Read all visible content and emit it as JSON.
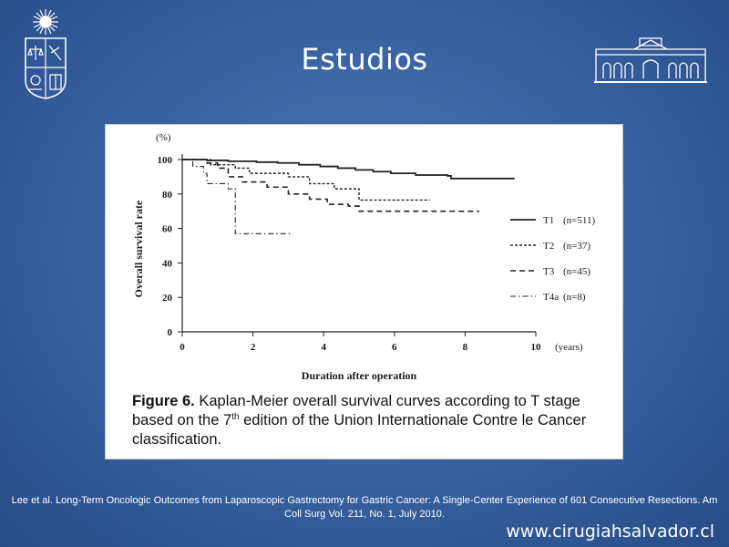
{
  "slide": {
    "title": "Estudios",
    "citation_line1": "Lee et al. Long-Term Oncologic Outcomes from Laparoscopic Gastrectomy for Gastric Cancer: A Single-Center Experience of 601 Consecutive Resections. Am",
    "citation_line2": "Coll Surg Vol. 211, No. 1, July 2010.",
    "website": "www.cirugiahsalvador.cl"
  },
  "figure": {
    "label": "Figure 6.",
    "caption_part1": "Kaplan-Meier overall survival curves according to T stage based on the 7",
    "caption_sup": "th",
    "caption_part2": " edition of the Union Internationale Contre le Cancer classification."
  },
  "logos": {
    "left": "university-crest-icon",
    "right": "hospital-building-icon"
  },
  "chart_data": {
    "type": "line",
    "step": true,
    "ylabel": "Overall survival rate",
    "yunit": "(%)",
    "xlabel": "Duration after operation",
    "xunit": "(years)",
    "xlim": [
      0,
      10
    ],
    "ylim": [
      0,
      100
    ],
    "x_ticks": [
      0,
      2,
      4,
      6,
      8,
      10
    ],
    "y_ticks": [
      0,
      20,
      40,
      60,
      80,
      100
    ],
    "grid": false,
    "legend_position": "right",
    "series": [
      {
        "name": "T1",
        "n_label": "(n=511)",
        "dash": "solid",
        "points": [
          [
            0,
            100
          ],
          [
            0.7,
            99.5
          ],
          [
            1.3,
            99
          ],
          [
            2.1,
            98.5
          ],
          [
            2.7,
            98
          ],
          [
            3.3,
            97
          ],
          [
            3.9,
            96
          ],
          [
            4.4,
            95
          ],
          [
            4.9,
            94
          ],
          [
            5.4,
            93
          ],
          [
            5.9,
            92
          ],
          [
            6.6,
            91
          ],
          [
            7.5,
            90.5
          ],
          [
            7.6,
            89
          ],
          [
            9.4,
            89
          ]
        ]
      },
      {
        "name": "T2",
        "n_label": "(n=37)",
        "dash": "dashed",
        "points": [
          [
            0,
            100
          ],
          [
            0.8,
            97
          ],
          [
            1.5,
            95
          ],
          [
            1.9,
            92
          ],
          [
            3.0,
            90
          ],
          [
            3.6,
            86
          ],
          [
            4.3,
            83
          ],
          [
            5.0,
            76.5
          ],
          [
            7.0,
            76.5
          ]
        ]
      },
      {
        "name": "T3",
        "n_label": "(n=45)",
        "dash": "long-dashed",
        "points": [
          [
            0,
            100
          ],
          [
            0.7,
            98
          ],
          [
            1.0,
            95
          ],
          [
            1.3,
            90
          ],
          [
            1.7,
            87
          ],
          [
            2.4,
            84
          ],
          [
            3.0,
            80
          ],
          [
            3.6,
            77
          ],
          [
            4.1,
            74
          ],
          [
            4.7,
            73
          ],
          [
            5.0,
            70
          ],
          [
            8.4,
            70
          ]
        ]
      },
      {
        "name": "T4a",
        "n_label": "(n=8)",
        "dash": "dash-dot",
        "points": [
          [
            0,
            100
          ],
          [
            0.3,
            96
          ],
          [
            0.6,
            92
          ],
          [
            0.7,
            86
          ],
          [
            1.3,
            83
          ],
          [
            1.5,
            57
          ],
          [
            3.1,
            57
          ]
        ]
      }
    ]
  }
}
